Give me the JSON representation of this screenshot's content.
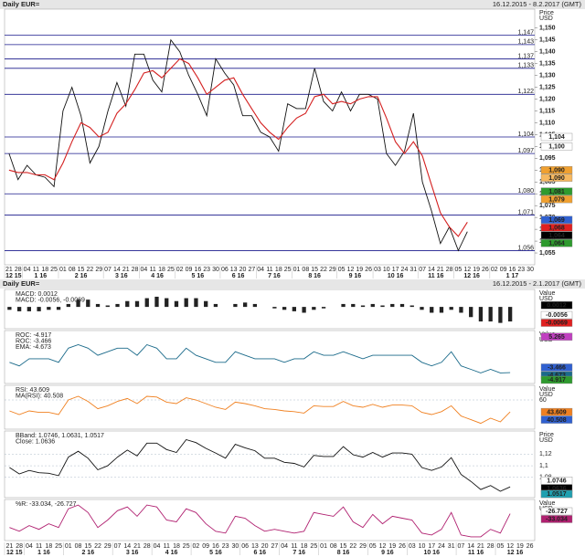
{
  "chart_data": [
    {
      "type": "line",
      "title": "Daily EUR=",
      "subtitle": "16.12.2015 - 8.2.2017 (GMT)",
      "ylabel": [
        "Price",
        "USD"
      ],
      "categories": [
        "21",
        "28",
        "04",
        "11",
        "18",
        "25",
        "01",
        "08",
        "15",
        "22",
        "29",
        "07",
        "14",
        "21",
        "28",
        "04",
        "11",
        "18",
        "25",
        "02",
        "09",
        "16",
        "23",
        "30",
        "06",
        "13",
        "20",
        "27",
        "04",
        "11",
        "18",
        "25",
        "01",
        "08",
        "15",
        "22",
        "29",
        "05",
        "12",
        "19",
        "26",
        "03",
        "10",
        "17",
        "24",
        "31",
        "07",
        "14",
        "21",
        "28",
        "05",
        "12",
        "19",
        "26",
        "02",
        "09",
        "16",
        "23",
        "30"
      ],
      "category_groups": [
        {
          "label": "12 15",
          "count": 2
        },
        {
          "label": "1 16",
          "count": 4
        },
        {
          "label": "2 16",
          "count": 5
        },
        {
          "label": "3 16",
          "count": 4
        },
        {
          "label": "4 16",
          "count": 4
        },
        {
          "label": "5 16",
          "count": 5
        },
        {
          "label": "6 16",
          "count": 4
        },
        {
          "label": "7 16",
          "count": 4
        },
        {
          "label": "8 16",
          "count": 5
        },
        {
          "label": "9 16",
          "count": 4
        },
        {
          "label": "10 16",
          "count": 5
        },
        {
          "label": "11 16",
          "count": 4
        },
        {
          "label": "12 16",
          "count": 4
        },
        {
          "label": "1 17",
          "count": 5
        }
      ],
      "series": [
        {
          "color": "#111111",
          "values": [
            1.097,
            1.086,
            1.092,
            1.088,
            1.087,
            1.083,
            1.115,
            1.125,
            1.113,
            1.093,
            1.1,
            1.115,
            1.127,
            1.117,
            1.139,
            1.139,
            1.128,
            1.123,
            1.145,
            1.14,
            1.13,
            1.122,
            1.113,
            1.137,
            1.131,
            1.126,
            1.113,
            1.113,
            1.106,
            1.104,
            1.098,
            1.118,
            1.116,
            1.116,
            1.133,
            1.119,
            1.115,
            1.123,
            1.115,
            1.122,
            1.122,
            1.12,
            1.097,
            1.092,
            1.098,
            1.114,
            1.085,
            1.073,
            1.059,
            1.066,
            1.056,
            1.064,
            null,
            null,
            null,
            null,
            null,
            null,
            null
          ]
        },
        {
          "color": "#d42020",
          "values": [
            1.09,
            1.089,
            1.089,
            1.088,
            1.088,
            1.086,
            1.093,
            1.102,
            1.11,
            1.108,
            1.104,
            1.106,
            1.114,
            1.118,
            1.124,
            1.131,
            1.132,
            1.129,
            1.133,
            1.137,
            1.135,
            1.129,
            1.122,
            1.125,
            1.128,
            1.129,
            1.122,
            1.116,
            1.11,
            1.106,
            1.103,
            1.108,
            1.112,
            1.114,
            1.121,
            1.122,
            1.118,
            1.119,
            1.118,
            1.12,
            1.121,
            1.121,
            1.112,
            1.102,
            1.097,
            1.102,
            1.096,
            1.084,
            1.072,
            1.066,
            1.062,
            1.068,
            null,
            null,
            null,
            null,
            null,
            null,
            null
          ]
        }
      ],
      "ylim": [
        1.05,
        1.158
      ],
      "yticks": [
        {
          "value": 1.055,
          "label": "1,055"
        },
        {
          "value": 1.06,
          "label": "1,060"
        },
        {
          "value": 1.065,
          "label": "1,065"
        },
        {
          "value": 1.07,
          "label": "1,070"
        },
        {
          "value": 1.075,
          "label": "1,075"
        },
        {
          "value": 1.08,
          "label": "1,080"
        },
        {
          "value": 1.085,
          "label": "1,085"
        },
        {
          "value": 1.09,
          "label": "1,090"
        },
        {
          "value": 1.095,
          "label": "1,095"
        },
        {
          "value": 1.1,
          "label": "1,100"
        },
        {
          "value": 1.105,
          "label": "1,105"
        },
        {
          "value": 1.11,
          "label": "1,110"
        },
        {
          "value": 1.115,
          "label": "1,115"
        },
        {
          "value": 1.12,
          "label": "1,120"
        },
        {
          "value": 1.125,
          "label": "1,125"
        },
        {
          "value": 1.13,
          "label": "1,130"
        },
        {
          "value": 1.135,
          "label": "1,135"
        },
        {
          "value": 1.14,
          "label": "1,140"
        },
        {
          "value": 1.145,
          "label": "1,145"
        },
        {
          "value": 1.15,
          "label": "1,150"
        }
      ],
      "levels": [
        {
          "value": 1.147,
          "label": "1,147"
        },
        {
          "value": 1.143,
          "label": "1,143"
        },
        {
          "value": 1.137,
          "label": "1,137"
        },
        {
          "value": 1.133,
          "label": "1,133"
        },
        {
          "value": 1.122,
          "label": "1,122"
        },
        {
          "value": 1.104,
          "label": "1,104"
        },
        {
          "value": 1.097,
          "label": "1,097"
        },
        {
          "value": 1.08,
          "label": "1,080"
        },
        {
          "value": 1.071,
          "label": "1,071"
        },
        {
          "value": 1.056,
          "label": "1,056"
        }
      ],
      "markers": [
        {
          "value": 1.104,
          "label": "1,104",
          "color": "#ffffff"
        },
        {
          "value": 1.1,
          "label": "1,100",
          "color": "#ffffff"
        },
        {
          "value": 1.09,
          "label": "1,090",
          "color": "#f0a030"
        },
        {
          "value": 1.09,
          "label": "1,090",
          "color": "#f6b860"
        },
        {
          "value": 1.081,
          "label": "1,081",
          "color": "#2e9a2e"
        },
        {
          "value": 1.079,
          "label": "1,079",
          "color": "#f0a030"
        },
        {
          "value": 1.069,
          "label": "1,069",
          "color": "#3060d0"
        },
        {
          "value": 1.068,
          "label": "1,068",
          "color": "#e02020"
        },
        {
          "value": 1.064,
          "label": "1,064",
          "color": "#000000"
        },
        {
          "value": 1.064,
          "label": "1,064",
          "color": "#2e9a2e"
        }
      ]
    },
    {
      "type": "panes",
      "title": "Daily EUR=",
      "subtitle": "16.12.2015 - 2.1.2017 (GMT)",
      "categories": [
        "21",
        "28",
        "04",
        "11",
        "18",
        "25",
        "01",
        "08",
        "15",
        "22",
        "29",
        "07",
        "14",
        "21",
        "28",
        "04",
        "11",
        "18",
        "25",
        "02",
        "09",
        "16",
        "23",
        "30",
        "06",
        "13",
        "20",
        "27",
        "04",
        "11",
        "18",
        "25",
        "01",
        "08",
        "15",
        "22",
        "29",
        "05",
        "12",
        "19",
        "26",
        "03",
        "10",
        "17",
        "24",
        "31",
        "07",
        "14",
        "21",
        "28",
        "05",
        "12",
        "19",
        "26"
      ],
      "category_groups": [
        {
          "label": "12 15",
          "count": 2
        },
        {
          "label": "1 16",
          "count": 4
        },
        {
          "label": "2 16",
          "count": 5
        },
        {
          "label": "3 16",
          "count": 4
        },
        {
          "label": "4 16",
          "count": 4
        },
        {
          "label": "5 16",
          "count": 5
        },
        {
          "label": "6 16",
          "count": 4
        },
        {
          "label": "7 16",
          "count": 4
        },
        {
          "label": "8 16",
          "count": 5
        },
        {
          "label": "9 16",
          "count": 4
        },
        {
          "label": "10 16",
          "count": 5
        },
        {
          "label": "11 16",
          "count": 4
        },
        {
          "label": "12 16",
          "count": 4
        }
      ],
      "panes": [
        {
          "type": "bar",
          "ylabel": [
            "Value",
            "USD"
          ],
          "ylim": [
            -0.015,
            0.012
          ],
          "yticks": [],
          "legend": [
            {
              "label": "MACD: 0.0012",
              "color": "#111111"
            },
            {
              "label": "MACD: -0.0056, -0.0069",
              "color": "#d42020"
            }
          ],
          "color": "#222222",
          "values": [
            -0.002,
            -0.003,
            -0.003,
            -0.003,
            -0.002,
            -0.002,
            0.002,
            0.005,
            0.005,
            0.002,
            0.001,
            0.002,
            0.004,
            0.004,
            0.006,
            0.007,
            0.006,
            0.004,
            0.006,
            0.006,
            0.004,
            0.002,
            0,
            0.002,
            0.003,
            0.002,
            0,
            -0.001,
            -0.002,
            -0.003,
            -0.004,
            -0.002,
            -0.001,
            0,
            0.002,
            0.002,
            0.001,
            0.002,
            0.001,
            0.002,
            0.002,
            0.001,
            -0.002,
            -0.004,
            -0.004,
            -0.002,
            -0.004,
            -0.007,
            -0.01,
            -0.01,
            -0.011,
            -0.01,
            null,
            null
          ],
          "markers": [
            {
              "value": 0.0012,
              "label": "0.0012",
              "color": "#000000"
            },
            {
              "value": -0.0056,
              "label": "-0.0056",
              "color": "#ffffff"
            },
            {
              "value": -0.0069,
              "label": "-0.0069",
              "color": "#e02020"
            }
          ]
        },
        {
          "type": "line",
          "ylabel": [
            "Value",
            "USD"
          ],
          "ylim": [
            -8,
            7
          ],
          "yticks": [],
          "legend": [
            {
              "label": "ROC: -4.917",
              "color": "#2e9a2e"
            },
            {
              "label": "ROC: -3.466",
              "color": "#3060d0"
            },
            {
              "label": "EMA: -4.673",
              "color": "#1a6a8a"
            }
          ],
          "color": "#1a6a8a",
          "values": [
            -2,
            -3,
            -1,
            -1,
            -1,
            -2,
            2,
            3,
            2,
            0,
            1,
            2,
            2,
            0,
            3,
            2,
            -1,
            -1,
            2,
            0,
            -1,
            -2,
            -2,
            1,
            0,
            -1,
            -1,
            -1,
            -2,
            -1,
            -1,
            1,
            0,
            0,
            1,
            0,
            -1,
            0,
            0,
            0,
            0,
            0,
            -2,
            -3,
            -2,
            1,
            -3,
            -4,
            -5,
            -4,
            -5,
            -4.917,
            null,
            null
          ],
          "markers": [
            {
              "value": 5.265,
              "label": "5.265",
              "color": "#c040c0"
            },
            {
              "value": -3.466,
              "label": "-3.466",
              "color": "#3060d0"
            },
            {
              "value": -4.673,
              "label": "-4.673",
              "color": "#1a6a8a"
            },
            {
              "value": -4.917,
              "label": "-4.917",
              "color": "#2e9a2e"
            }
          ]
        },
        {
          "type": "line",
          "ylabel": [
            "Value",
            "USD"
          ],
          "ylim": [
            20,
            80
          ],
          "yticks": [
            60
          ],
          "legend": [
            {
              "label": "RSI: 43.609",
              "color": "#f08020"
            },
            {
              "label": "MA(RSI): 40.508",
              "color": "#3060d0"
            }
          ],
          "color": "#f08020",
          "values": [
            45,
            40,
            45,
            43,
            43,
            40,
            60,
            65,
            58,
            48,
            52,
            58,
            62,
            55,
            65,
            64,
            57,
            55,
            63,
            60,
            55,
            50,
            47,
            57,
            55,
            52,
            48,
            47,
            45,
            44,
            42,
            52,
            51,
            51,
            58,
            52,
            50,
            54,
            50,
            53,
            53,
            52,
            43,
            40,
            44,
            52,
            38,
            33,
            28,
            35,
            30,
            43.609,
            null,
            null
          ],
          "markers": [
            {
              "value": 43.609,
              "label": "43.609",
              "color": "#f08020"
            },
            {
              "value": 40.508,
              "label": "40.508",
              "color": "#3060d0"
            }
          ]
        },
        {
          "type": "line",
          "ylabel": [
            "Price",
            "USD"
          ],
          "ylim": [
            1.045,
            1.16
          ],
          "yticks": [
            {
              "value": 1.08,
              "label": "1,08"
            },
            {
              "value": 1.1,
              "label": "1,1"
            },
            {
              "value": 1.12,
              "label": "1,12"
            }
          ],
          "legend": [
            {
              "label": "BBand: 1.0746, 1.0631, 1.0517",
              "color": "#20a0b0"
            },
            {
              "label": "Close: 1.0636",
              "color": "#111111"
            }
          ],
          "color": "#111111",
          "values": [
            1.097,
            1.086,
            1.092,
            1.088,
            1.087,
            1.083,
            1.115,
            1.125,
            1.113,
            1.093,
            1.1,
            1.115,
            1.127,
            1.117,
            1.139,
            1.139,
            1.128,
            1.123,
            1.145,
            1.14,
            1.13,
            1.122,
            1.113,
            1.137,
            1.131,
            1.126,
            1.113,
            1.113,
            1.106,
            1.104,
            1.098,
            1.118,
            1.116,
            1.116,
            1.133,
            1.119,
            1.115,
            1.123,
            1.115,
            1.122,
            1.122,
            1.12,
            1.097,
            1.092,
            1.098,
            1.114,
            1.085,
            1.073,
            1.059,
            1.066,
            1.056,
            1.0636,
            null,
            null
          ],
          "markers": [
            {
              "value": 1.0746,
              "label": "1.0746",
              "color": "#ffffff"
            },
            {
              "value": 1.0636,
              "label": "1.0636",
              "color": "#000000"
            },
            {
              "value": 1.0631,
              "label": "1.0631",
              "color": "#20a0b0"
            },
            {
              "value": 1.0517,
              "label": "1.0517",
              "color": "#20a0b0"
            }
          ]
        },
        {
          "type": "line",
          "ylabel": [
            "Value",
            "USD"
          ],
          "ylim": [
            -105,
            5
          ],
          "yticks": [],
          "legend": [
            {
              "label": "%R: -33.034, -26.727",
              "color": "#c080c0"
            }
          ],
          "color": "#b02070",
          "values": [
            -70,
            -80,
            -65,
            -75,
            -60,
            -70,
            -20,
            -10,
            -30,
            -70,
            -50,
            -25,
            -15,
            -40,
            -10,
            -15,
            -50,
            -55,
            -20,
            -30,
            -60,
            -80,
            -85,
            -40,
            -45,
            -65,
            -80,
            -75,
            -80,
            -85,
            -80,
            -30,
            -35,
            -40,
            -15,
            -55,
            -70,
            -35,
            -60,
            -40,
            -45,
            -50,
            -85,
            -90,
            -75,
            -30,
            -90,
            -95,
            -95,
            -75,
            -85,
            -33.034,
            null,
            null
          ],
          "markers": [
            {
              "value": -26.727,
              "label": "-26.727",
              "color": "#ffffff"
            },
            {
              "value": -33.034,
              "label": "-33.034",
              "color": "#b02070"
            }
          ]
        }
      ]
    }
  ]
}
